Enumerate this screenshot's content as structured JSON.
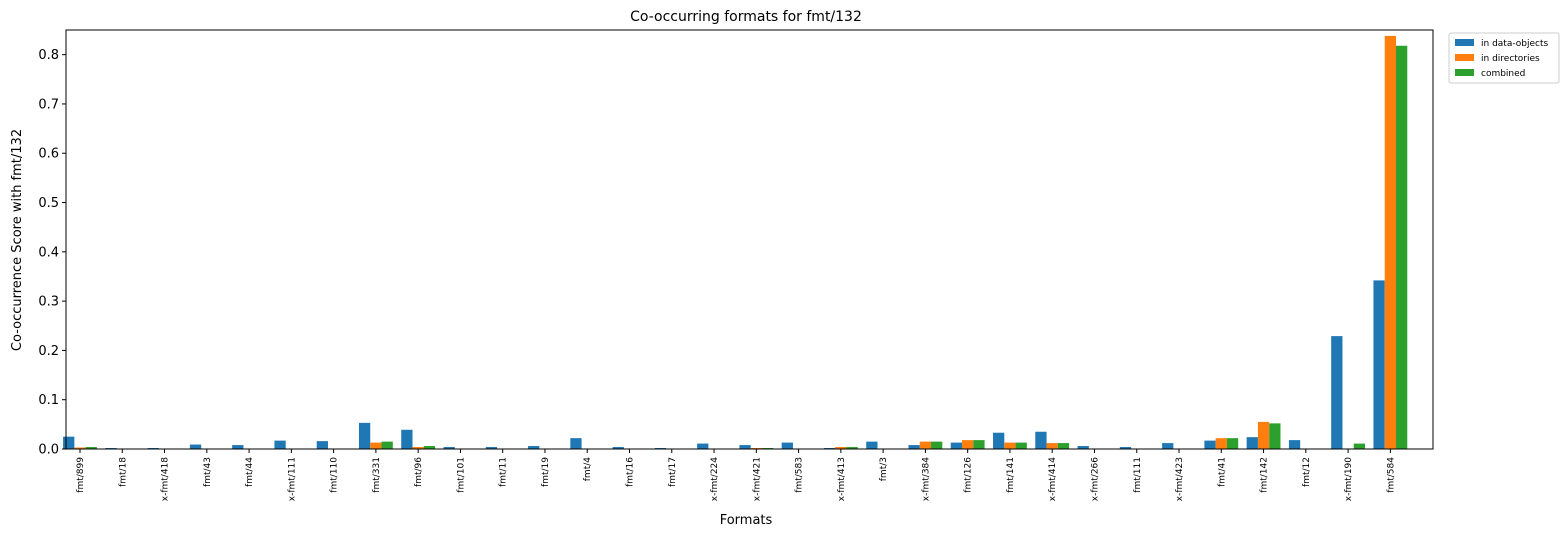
{
  "chart_data": {
    "type": "bar",
    "title": "Co-occurring formats for fmt/132",
    "xlabel": "Formats",
    "ylabel": "Co-occurrence Score with fmt/132",
    "ylim": [
      0,
      0.85
    ],
    "yticks": [
      "0.0",
      "0.1",
      "0.2",
      "0.3",
      "0.4",
      "0.5",
      "0.6",
      "0.7",
      "0.8"
    ],
    "grid": false,
    "legend_position": "outside-top-right",
    "categories": [
      "fmt/899",
      "fmt/18",
      "x-fmt/418",
      "fmt/43",
      "fmt/44",
      "x-fmt/111",
      "fmt/110",
      "fmt/331",
      "fmt/96",
      "fmt/101",
      "fmt/11",
      "fmt/19",
      "fmt/4",
      "fmt/16",
      "fmt/17",
      "x-fmt/224",
      "x-fmt/421",
      "fmt/583",
      "x-fmt/413",
      "fmt/3",
      "x-fmt/384",
      "fmt/126",
      "fmt/141",
      "x-fmt/414",
      "x-fmt/266",
      "fmt/111",
      "x-fmt/423",
      "fmt/41",
      "fmt/142",
      "fmt/12",
      "x-fmt/190",
      "fmt/584"
    ],
    "series": [
      {
        "name": "in data-objects",
        "color": "#1f77b4",
        "values": [
          0.025,
          0.002,
          0.002,
          0.009,
          0.008,
          0.017,
          0.016,
          0.053,
          0.039,
          0.004,
          0.004,
          0.006,
          0.022,
          0.004,
          0.002,
          0.011,
          0.008,
          0.013,
          0.002,
          0.015,
          0.008,
          0.013,
          0.033,
          0.035,
          0.006,
          0.004,
          0.012,
          0.017,
          0.024,
          0.018,
          0.229,
          0.342
        ]
      },
      {
        "name": "in directories",
        "color": "#ff7f0e",
        "values": [
          0.003,
          0,
          0,
          0,
          0,
          0,
          0,
          0.013,
          0.004,
          0,
          0,
          0,
          0,
          0,
          0,
          0,
          0.002,
          0,
          0.004,
          0,
          0.015,
          0.018,
          0.013,
          0.012,
          0,
          0,
          0,
          0.022,
          0.055,
          0,
          0,
          0.838
        ]
      },
      {
        "name": "combined",
        "color": "#2ca02c",
        "values": [
          0.004,
          0,
          0,
          0,
          0,
          0,
          0,
          0.015,
          0.006,
          0,
          0,
          0,
          0,
          0,
          0,
          0,
          0.002,
          0,
          0.004,
          0,
          0.015,
          0.018,
          0.013,
          0.012,
          0,
          0,
          0,
          0.022,
          0.052,
          0,
          0.011,
          0.818
        ]
      }
    ]
  }
}
